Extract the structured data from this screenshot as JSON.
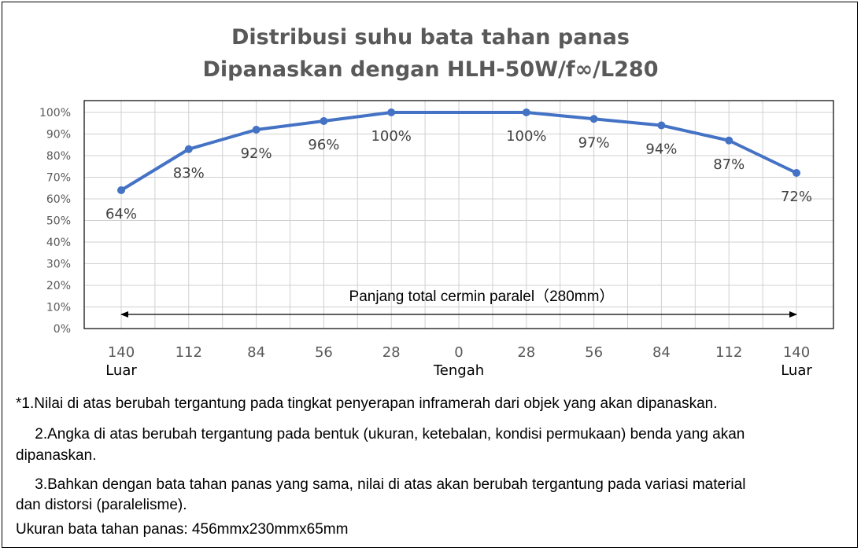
{
  "chart_data": {
    "type": "line",
    "title": "Distribusi suhu bata tahan panas",
    "subtitle": "Dipanaskan dengan HLH-50W/f∞/L280",
    "x_ticks": [
      "140",
      "112",
      "84",
      "56",
      "28",
      "0",
      "28",
      "56",
      "84",
      "112",
      "140"
    ],
    "x_sublabels": [
      {
        "at": "140-left",
        "text": "Luar"
      },
      {
        "at": "0",
        "text": "Tengah"
      },
      {
        "at": "140-right",
        "text": "Luar"
      }
    ],
    "x": [
      "-140",
      "-112",
      "-84",
      "-56",
      "-28",
      "28",
      "56",
      "84",
      "112",
      "140"
    ],
    "values": [
      64,
      83,
      92,
      96,
      100,
      100,
      97,
      94,
      87,
      72
    ],
    "data_labels": [
      "64%",
      "83%",
      "92%",
      "96%",
      "100%",
      "100%",
      "97%",
      "94%",
      "87%",
      "72%"
    ],
    "y_ticks": [
      "0%",
      "10%",
      "20%",
      "30%",
      "40%",
      "50%",
      "60%",
      "70%",
      "80%",
      "90%",
      "100%"
    ],
    "ylim": [
      0,
      100
    ],
    "grid": true,
    "series_color": "#4472C4",
    "span_annotation": "Panjang total cermin paralel（280mm）"
  },
  "notes": [
    "*1.Nilai di atas berubah tergantung pada tingkat penyerapan inframerah dari objek yang akan dipanaskan.",
    "　 2.Angka di atas berubah tergantung pada bentuk (ukuran, ketebalan, kondisi permukaan) benda yang akan",
    "dipanaskan.",
    "　 3.Bahkan dengan bata tahan panas yang sama, nilai di atas akan berubah tergantung pada variasi material",
    "dan distorsi (paralelisme).",
    "Ukuran bata tahan panas: 456mmx230mmx65mm"
  ]
}
